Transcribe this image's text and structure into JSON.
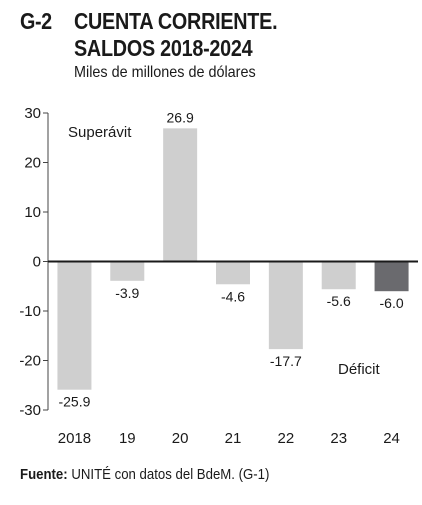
{
  "header": {
    "fig_num": "G-2",
    "title_line1": "CUENTA CORRIENTE.",
    "title_line2": "SALDOS 2018-2024",
    "subtitle": "Miles de millones de dólares"
  },
  "chart_data": {
    "type": "bar",
    "categories": [
      "2018",
      "19",
      "20",
      "21",
      "22",
      "23",
      "24"
    ],
    "values": [
      -25.9,
      -3.9,
      26.9,
      -4.6,
      -17.7,
      -5.6,
      -6.0
    ],
    "value_labels": [
      "-25.9",
      "-3.9",
      "26.9",
      "-4.6",
      "-17.7",
      "-5.6",
      "-6.0"
    ],
    "ylim": [
      -30,
      30
    ],
    "yticks": [
      30,
      20,
      10,
      0,
      -10,
      -20,
      -30
    ],
    "ytick_labels": [
      "30",
      "20",
      "10",
      "0",
      "-10",
      "-20",
      "-30"
    ],
    "annotations": {
      "surplus": "Superávit",
      "deficit": "Déficit"
    },
    "colors": {
      "bar": "#cfcfcf",
      "highlight_bar": "#6a6a6e",
      "zero_line": "#1a1a1a",
      "axis": "#444444"
    },
    "highlight_index": 6,
    "grid": false
  },
  "footer": {
    "label": "Fuente:",
    "text": " UNITÉ con datos del BdeM. (G-1)"
  }
}
